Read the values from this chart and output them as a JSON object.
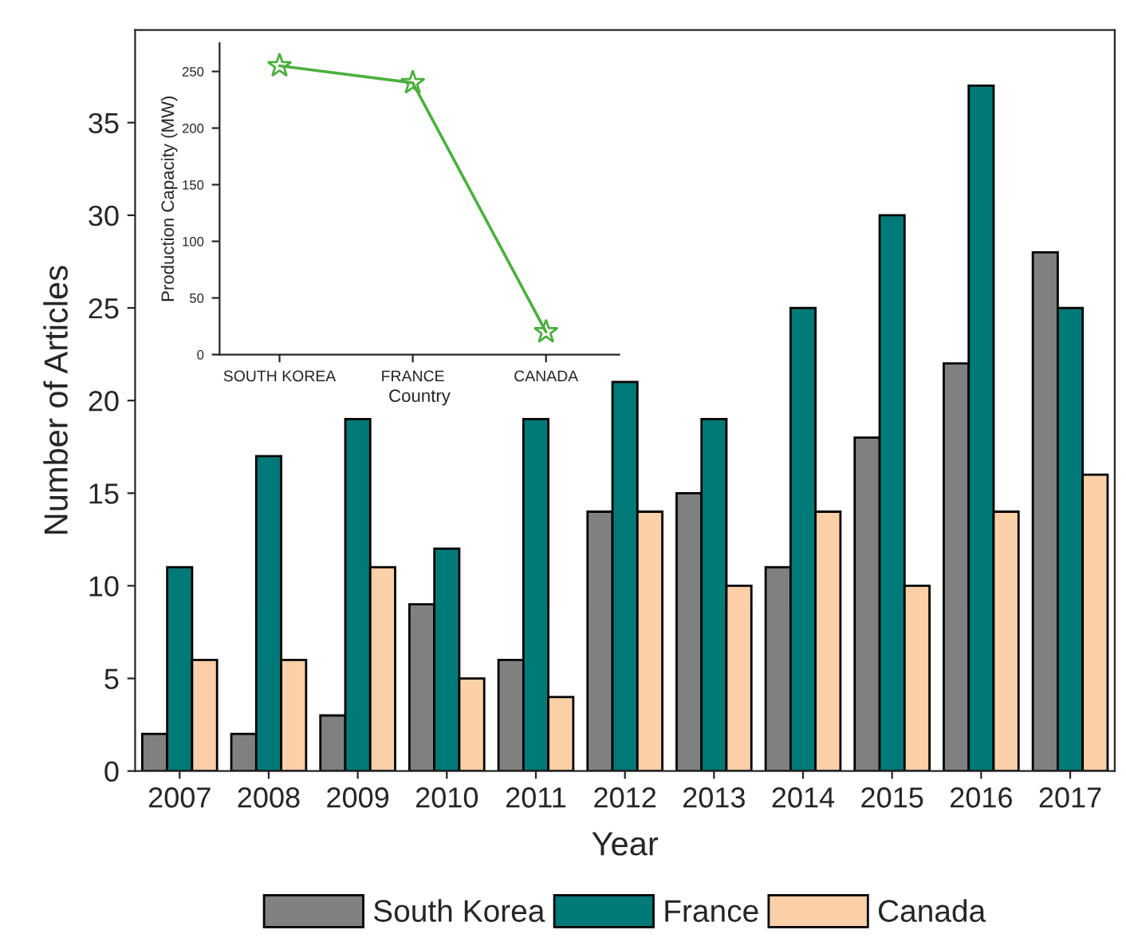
{
  "chart_data": [
    {
      "type": "bar",
      "xlabel": "Year",
      "ylabel": "Number of Articles",
      "categories": [
        "2007",
        "2008",
        "2009",
        "2010",
        "2011",
        "2012",
        "2013",
        "2014",
        "2015",
        "2016",
        "2017"
      ],
      "series": [
        {
          "name": "South Korea",
          "color": "#808080",
          "values": [
            2,
            2,
            3,
            9,
            6,
            14,
            15,
            11,
            18,
            22,
            28
          ]
        },
        {
          "name": "France",
          "color": "#007a78",
          "values": [
            11,
            17,
            19,
            12,
            19,
            21,
            19,
            25,
            30,
            37,
            25
          ]
        },
        {
          "name": "Canada",
          "color": "#fbcfa8",
          "values": [
            6,
            6,
            11,
            5,
            4,
            14,
            10,
            14,
            10,
            14,
            16
          ]
        }
      ],
      "ylim": [
        0,
        40
      ],
      "yticks": [
        0,
        5,
        10,
        15,
        20,
        25,
        30,
        35
      ],
      "legend": "bottom",
      "grid": false
    },
    {
      "type": "line",
      "xlabel": "Country",
      "ylabel": "Production Capacity (MW)",
      "categories": [
        "SOUTH KOREA",
        "FRANCE",
        "CANADA"
      ],
      "series": [
        {
          "color": "#4caf3f",
          "values": [
            255,
            240,
            20
          ]
        }
      ],
      "ylim": [
        0,
        275
      ],
      "yticks": [
        0,
        50,
        100,
        150,
        200,
        250
      ],
      "marker": "star",
      "grid": false
    }
  ]
}
